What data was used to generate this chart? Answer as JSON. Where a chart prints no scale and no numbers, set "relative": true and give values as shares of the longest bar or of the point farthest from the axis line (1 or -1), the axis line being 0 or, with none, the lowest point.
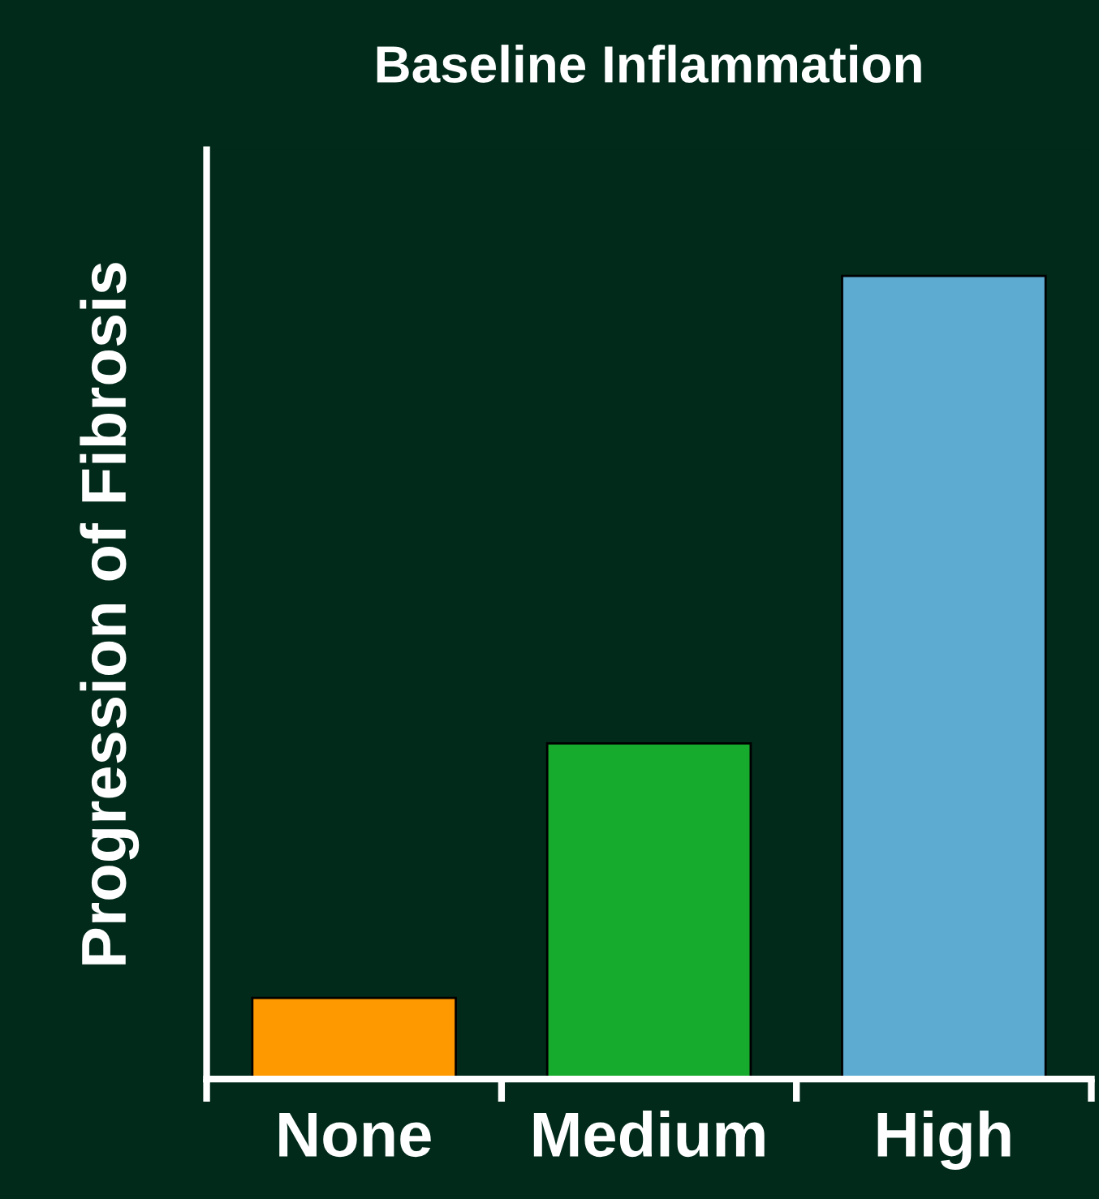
{
  "chart_data": {
    "type": "bar",
    "title": "Baseline Inflammation",
    "ylabel": "Progression of Fibrosis",
    "categories": [
      "None",
      "Medium",
      "High"
    ],
    "values": [
      0.101,
      0.418,
      1
    ],
    "colors": [
      "#ff9900",
      "#16ab2c",
      "#5eabd2"
    ],
    "relative": true,
    "grid": false
  }
}
